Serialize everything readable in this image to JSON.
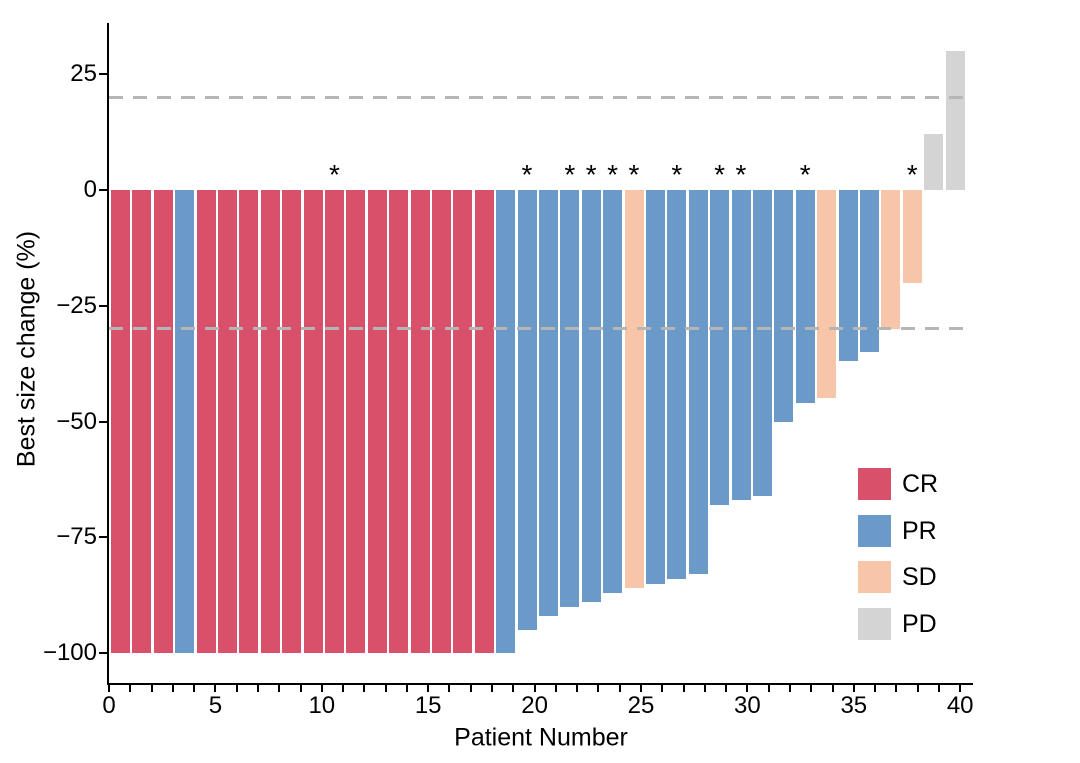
{
  "chart_data": {
    "type": "bar",
    "subtype": "waterfall",
    "title": "",
    "xlabel": "Patient Number",
    "ylabel": "Best size change (%)",
    "xlim": [
      0,
      40.6
    ],
    "ylim": [
      -106.5,
      36
    ],
    "grid": false,
    "x_ticks": [
      0,
      5,
      10,
      15,
      20,
      25,
      30,
      35,
      40
    ],
    "x_minor_tick_every": 1,
    "y_ticks": [
      {
        "label": "25",
        "value": 25
      },
      {
        "label": "0",
        "value": 0
      },
      {
        "label": "−25",
        "value": -25
      },
      {
        "label": "−50",
        "value": -50
      },
      {
        "label": "−75",
        "value": -75
      },
      {
        "label": "−100",
        "value": -100
      }
    ],
    "reference_lines": [
      {
        "value": 20,
        "style": "dashed",
        "color": "#b5b5b5"
      },
      {
        "value": -30,
        "style": "dashed",
        "color": "#b5b5b5"
      }
    ],
    "annotation_symbol": "*",
    "legend_position": "inside-right",
    "legend": [
      {
        "label": "CR",
        "color": "#d8506a"
      },
      {
        "label": "PR",
        "color": "#6b9ac8"
      },
      {
        "label": "SD",
        "color": "#f7c5a7"
      },
      {
        "label": "PD",
        "color": "#d4d4d4"
      }
    ],
    "patients": [
      {
        "n": 1,
        "value": -100,
        "response": "CR",
        "star": false
      },
      {
        "n": 2,
        "value": -100,
        "response": "CR",
        "star": false
      },
      {
        "n": 3,
        "value": -100,
        "response": "CR",
        "star": false
      },
      {
        "n": 4,
        "value": -100,
        "response": "PR",
        "star": false
      },
      {
        "n": 5,
        "value": -100,
        "response": "CR",
        "star": false
      },
      {
        "n": 6,
        "value": -100,
        "response": "CR",
        "star": false
      },
      {
        "n": 7,
        "value": -100,
        "response": "CR",
        "star": false
      },
      {
        "n": 8,
        "value": -100,
        "response": "CR",
        "star": false
      },
      {
        "n": 9,
        "value": -100,
        "response": "CR",
        "star": false
      },
      {
        "n": 10,
        "value": -100,
        "response": "CR",
        "star": false
      },
      {
        "n": 11,
        "value": -100,
        "response": "CR",
        "star": true
      },
      {
        "n": 12,
        "value": -100,
        "response": "CR",
        "star": false
      },
      {
        "n": 13,
        "value": -100,
        "response": "CR",
        "star": false
      },
      {
        "n": 14,
        "value": -100,
        "response": "CR",
        "star": false
      },
      {
        "n": 15,
        "value": -100,
        "response": "CR",
        "star": false
      },
      {
        "n": 16,
        "value": -100,
        "response": "CR",
        "star": false
      },
      {
        "n": 17,
        "value": -100,
        "response": "CR",
        "star": false
      },
      {
        "n": 18,
        "value": -100,
        "response": "CR",
        "star": false
      },
      {
        "n": 19,
        "value": -100,
        "response": "PR",
        "star": false
      },
      {
        "n": 20,
        "value": -95,
        "response": "PR",
        "star": true
      },
      {
        "n": 21,
        "value": -92,
        "response": "PR",
        "star": false
      },
      {
        "n": 22,
        "value": -90,
        "response": "PR",
        "star": true
      },
      {
        "n": 23,
        "value": -89,
        "response": "PR",
        "star": true
      },
      {
        "n": 24,
        "value": -87,
        "response": "PR",
        "star": true
      },
      {
        "n": 25,
        "value": -86,
        "response": "SD",
        "star": true
      },
      {
        "n": 26,
        "value": -85,
        "response": "PR",
        "star": false
      },
      {
        "n": 27,
        "value": -84,
        "response": "PR",
        "star": true
      },
      {
        "n": 28,
        "value": -83,
        "response": "PR",
        "star": false
      },
      {
        "n": 29,
        "value": -68,
        "response": "PR",
        "star": true
      },
      {
        "n": 30,
        "value": -67,
        "response": "PR",
        "star": true
      },
      {
        "n": 31,
        "value": -66,
        "response": "PR",
        "star": false
      },
      {
        "n": 32,
        "value": -50,
        "response": "PR",
        "star": false
      },
      {
        "n": 33,
        "value": -46,
        "response": "PR",
        "star": true
      },
      {
        "n": 34,
        "value": -45,
        "response": "SD",
        "star": false
      },
      {
        "n": 35,
        "value": -37,
        "response": "PR",
        "star": false
      },
      {
        "n": 36,
        "value": -35,
        "response": "PR",
        "star": false
      },
      {
        "n": 37,
        "value": -30,
        "response": "SD",
        "star": false
      },
      {
        "n": 38,
        "value": -20,
        "response": "SD",
        "star": true
      },
      {
        "n": 39,
        "value": 12,
        "response": "PD",
        "star": false
      },
      {
        "n": 40,
        "value": 30,
        "response": "PD",
        "star": false
      }
    ]
  }
}
